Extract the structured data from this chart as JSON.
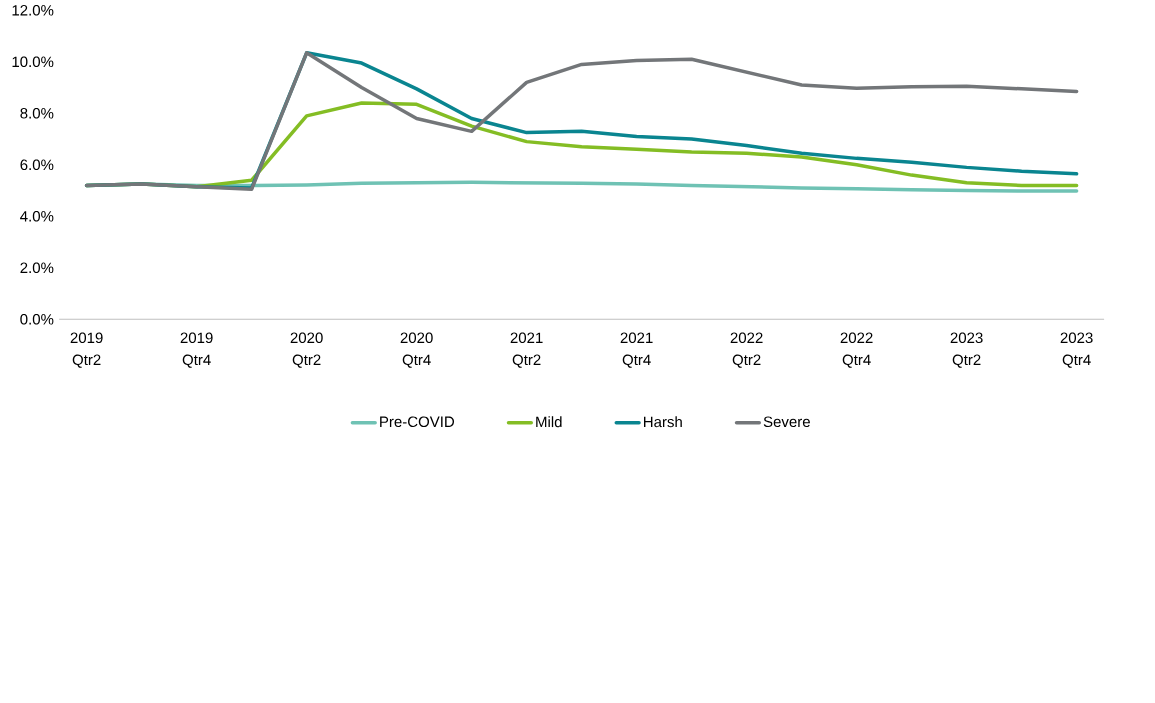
{
  "chart_data": {
    "type": "line",
    "categories": [
      "2019 Qtr2",
      null,
      "2019 Qtr4",
      null,
      "2020 Qtr2",
      null,
      "2020 Qtr4",
      null,
      "2021 Qtr2",
      null,
      "2021 Qtr4",
      null,
      "2022 Qtr2",
      null,
      "2022 Qtr4",
      null,
      "2023 Qtr2",
      null,
      "2023 Qtr4"
    ],
    "series": [
      {
        "name": "Pre-COVID",
        "color": "#6fc2b4",
        "values": [
          5.2,
          5.25,
          5.2,
          5.2,
          5.22,
          5.28,
          5.3,
          5.32,
          5.3,
          5.28,
          5.25,
          5.2,
          5.15,
          5.1,
          5.07,
          5.03,
          5.0,
          4.98,
          4.98
        ]
      },
      {
        "name": "Mild",
        "color": "#84bd24",
        "values": [
          5.2,
          5.25,
          5.15,
          5.4,
          7.9,
          8.4,
          8.35,
          7.5,
          6.9,
          6.7,
          6.6,
          6.5,
          6.45,
          6.3,
          6.0,
          5.6,
          5.3,
          5.2,
          5.2
        ]
      },
      {
        "name": "Harsh",
        "color": "#0a8590",
        "values": [
          5.2,
          5.25,
          5.15,
          5.1,
          10.35,
          9.95,
          8.95,
          7.8,
          7.25,
          7.3,
          7.1,
          7.0,
          6.75,
          6.45,
          6.25,
          6.1,
          5.9,
          5.75,
          5.65
        ]
      },
      {
        "name": "Severe",
        "color": "#737679",
        "values": [
          5.2,
          5.25,
          5.15,
          5.05,
          10.35,
          9.0,
          7.8,
          7.3,
          9.2,
          9.9,
          10.05,
          10.1,
          9.6,
          9.1,
          8.97,
          9.03,
          9.05,
          8.95,
          8.85
        ]
      }
    ],
    "ylim": [
      0,
      12
    ],
    "yticks": [
      {
        "value": 0,
        "label": "0.0%"
      },
      {
        "value": 2,
        "label": "2.0%"
      },
      {
        "value": 4,
        "label": "4.0%"
      },
      {
        "value": 6,
        "label": "6.0%"
      },
      {
        "value": 8,
        "label": "8.0%"
      },
      {
        "value": 10,
        "label": "10.0%"
      },
      {
        "value": 12,
        "label": "12.0%"
      }
    ],
    "grid": false,
    "legend": "bottom",
    "marker": "none",
    "line_style": "solid"
  }
}
